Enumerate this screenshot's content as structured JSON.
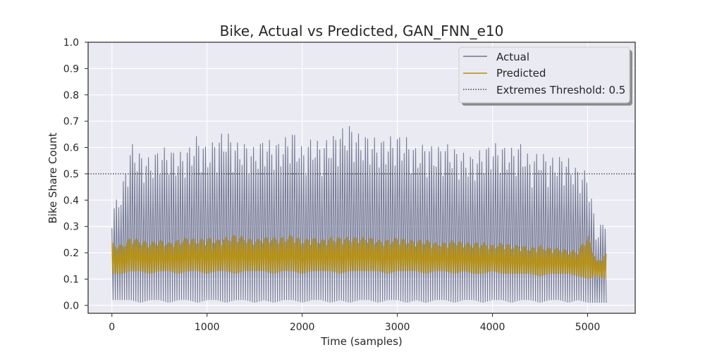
{
  "chart_data": {
    "type": "line",
    "title": "Bike, Actual vs Predicted, GAN_FNN_e10",
    "xlabel": "Time (samples)",
    "ylabel": "Bike Share Count",
    "xlim": [
      -250,
      5500
    ],
    "ylim": [
      -0.03,
      1.0
    ],
    "x_ticks": [
      0,
      1000,
      2000,
      3000,
      4000,
      5000
    ],
    "x_tick_labels": [
      "0",
      "1000",
      "2000",
      "3000",
      "4000",
      "5000"
    ],
    "y_ticks": [
      0.0,
      0.1,
      0.2,
      0.3,
      0.4,
      0.5,
      0.6,
      0.7,
      0.8,
      0.9,
      1.0
    ],
    "y_tick_labels": [
      "0.0",
      "0.1",
      "0.2",
      "0.3",
      "0.4",
      "0.5",
      "0.6",
      "0.7",
      "0.8",
      "0.9",
      "1.0"
    ],
    "grid": true,
    "legend_position": "top-right",
    "threshold": {
      "name": "Extremes Threshold: 0.5",
      "value": 0.5,
      "style": "dotted"
    },
    "series": [
      {
        "name": "Actual",
        "color": "#707590",
        "x": [
          0,
          100,
          200,
          300,
          400,
          500,
          600,
          700,
          800,
          900,
          1000,
          1100,
          1200,
          1300,
          1400,
          1500,
          1600,
          1700,
          1800,
          1900,
          2000,
          2100,
          2200,
          2300,
          2400,
          2500,
          2600,
          2700,
          2800,
          2900,
          3000,
          3100,
          3200,
          3300,
          3400,
          3500,
          3600,
          3700,
          3800,
          3900,
          4000,
          4100,
          4200,
          4300,
          4400,
          4500,
          4600,
          4700,
          4800,
          4900,
          5000,
          5100,
          5200
        ],
        "upper": [
          0.37,
          0.44,
          0.62,
          0.58,
          0.56,
          0.6,
          0.6,
          0.58,
          0.6,
          0.65,
          0.6,
          0.64,
          0.67,
          0.62,
          0.62,
          0.6,
          0.64,
          0.62,
          0.63,
          0.67,
          0.6,
          0.64,
          0.62,
          0.64,
          0.67,
          0.69,
          0.65,
          0.65,
          0.63,
          0.64,
          0.65,
          0.64,
          0.6,
          0.62,
          0.6,
          0.62,
          0.6,
          0.58,
          0.57,
          0.6,
          0.62,
          0.61,
          0.6,
          0.62,
          0.56,
          0.59,
          0.56,
          0.57,
          0.56,
          0.52,
          0.51,
          0.27,
          0.37
        ],
        "lower": [
          0.02,
          0.02,
          0.02,
          0.01,
          0.02,
          0.02,
          0.01,
          0.02,
          0.02,
          0.01,
          0.02,
          0.02,
          0.01,
          0.02,
          0.02,
          0.01,
          0.02,
          0.01,
          0.02,
          0.02,
          0.01,
          0.02,
          0.02,
          0.01,
          0.02,
          0.01,
          0.02,
          0.02,
          0.01,
          0.02,
          0.02,
          0.01,
          0.02,
          0.01,
          0.02,
          0.02,
          0.01,
          0.02,
          0.02,
          0.01,
          0.02,
          0.02,
          0.01,
          0.02,
          0.02,
          0.01,
          0.02,
          0.02,
          0.01,
          0.02,
          0.01,
          0.01,
          0.01
        ]
      },
      {
        "name": "Predicted",
        "color": "#b8900a",
        "x": [
          0,
          100,
          200,
          300,
          400,
          500,
          600,
          700,
          800,
          900,
          1000,
          1100,
          1200,
          1300,
          1400,
          1500,
          1600,
          1700,
          1800,
          1900,
          2000,
          2100,
          2200,
          2300,
          2400,
          2500,
          2600,
          2700,
          2800,
          2900,
          3000,
          3100,
          3200,
          3300,
          3400,
          3500,
          3600,
          3700,
          3800,
          3900,
          4000,
          4100,
          4200,
          4300,
          4400,
          4500,
          4600,
          4700,
          4800,
          4900,
          5000,
          5100,
          5200
        ],
        "upper": [
          0.24,
          0.23,
          0.26,
          0.25,
          0.24,
          0.25,
          0.24,
          0.25,
          0.26,
          0.25,
          0.26,
          0.25,
          0.26,
          0.27,
          0.26,
          0.25,
          0.26,
          0.26,
          0.26,
          0.27,
          0.25,
          0.26,
          0.25,
          0.26,
          0.26,
          0.26,
          0.26,
          0.26,
          0.25,
          0.25,
          0.26,
          0.25,
          0.25,
          0.25,
          0.24,
          0.24,
          0.25,
          0.24,
          0.24,
          0.24,
          0.23,
          0.24,
          0.23,
          0.23,
          0.22,
          0.23,
          0.22,
          0.22,
          0.21,
          0.21,
          0.27,
          0.17,
          0.2
        ],
        "lower": [
          0.12,
          0.12,
          0.13,
          0.13,
          0.12,
          0.13,
          0.13,
          0.12,
          0.13,
          0.13,
          0.12,
          0.13,
          0.13,
          0.12,
          0.13,
          0.13,
          0.13,
          0.12,
          0.13,
          0.13,
          0.12,
          0.13,
          0.13,
          0.13,
          0.12,
          0.13,
          0.13,
          0.13,
          0.13,
          0.12,
          0.13,
          0.13,
          0.13,
          0.12,
          0.13,
          0.13,
          0.12,
          0.13,
          0.12,
          0.12,
          0.13,
          0.12,
          0.12,
          0.12,
          0.12,
          0.11,
          0.12,
          0.12,
          0.12,
          0.11,
          0.1,
          0.11,
          0.1
        ]
      }
    ]
  }
}
